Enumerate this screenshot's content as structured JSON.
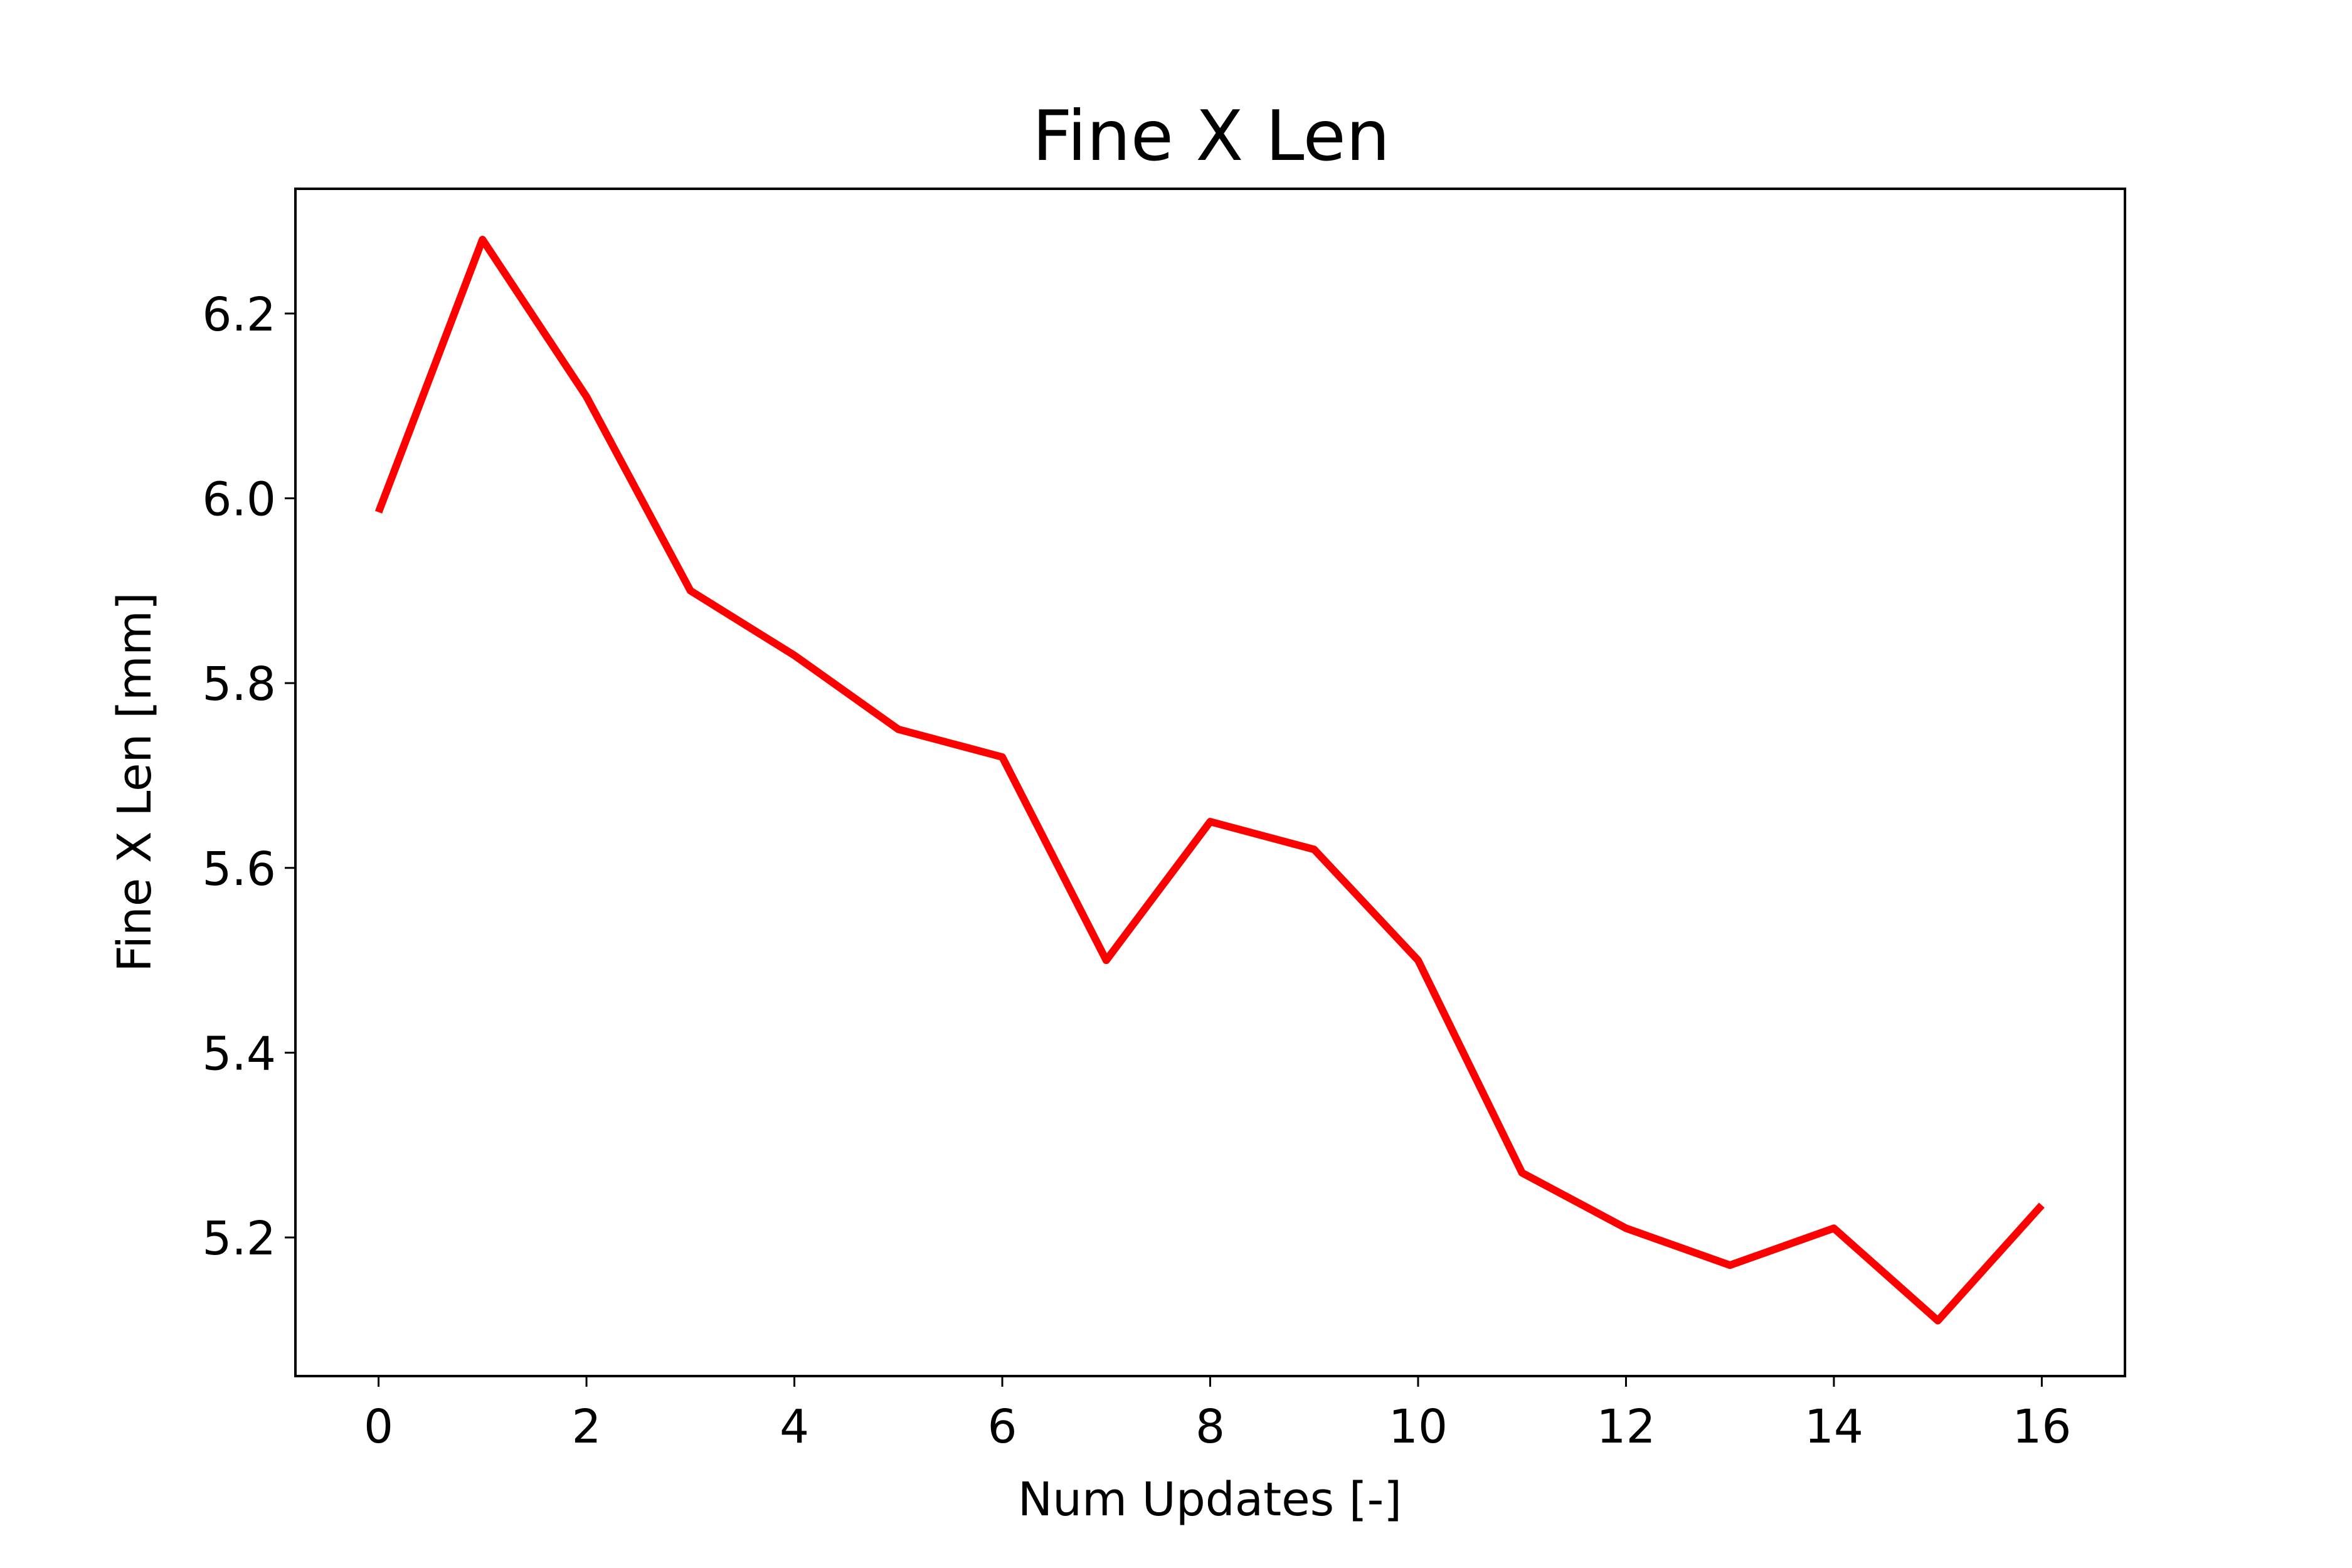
{
  "chart_data": {
    "type": "line",
    "title": "Fine X Len",
    "xlabel": "Num Updates [-]",
    "ylabel": "Fine X Len [mm]",
    "xlim": [
      -0.8,
      16.8
    ],
    "ylim": [
      5.05,
      6.335
    ],
    "xticks": [
      0,
      2,
      4,
      6,
      8,
      10,
      12,
      14,
      16
    ],
    "xtick_labels": [
      "0",
      "2",
      "4",
      "6",
      "8",
      "10",
      "12",
      "14",
      "16"
    ],
    "yticks": [
      5.2,
      5.4,
      5.6,
      5.8,
      6.0,
      6.2
    ],
    "ytick_labels": [
      "5.2",
      "5.4",
      "5.6",
      "5.8",
      "6.0",
      "6.2"
    ],
    "grid": false,
    "legend": "none",
    "series": [
      {
        "color": "#ff0000",
        "x": [
          0,
          1,
          2,
          3,
          4,
          5,
          6,
          7,
          8,
          9,
          10,
          11,
          12,
          13,
          14,
          15,
          16
        ],
        "y": [
          5.985,
          6.28,
          6.11,
          5.9,
          5.83,
          5.75,
          5.72,
          5.5,
          5.65,
          5.62,
          5.5,
          5.27,
          5.21,
          5.17,
          5.21,
          5.11,
          5.235
        ]
      }
    ]
  }
}
